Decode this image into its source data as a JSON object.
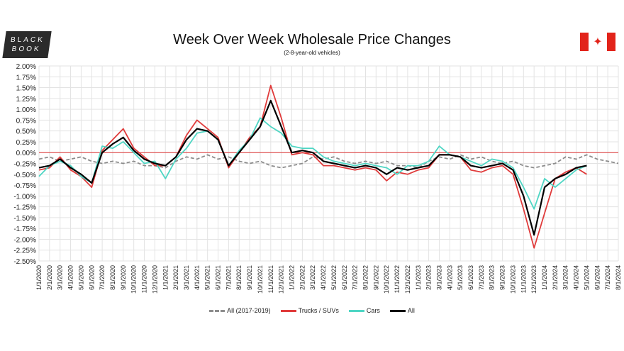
{
  "logo": {
    "line1": "BLACK",
    "line2": "BOOK"
  },
  "chart_data": {
    "type": "line",
    "title": "Week Over Week Wholesale Price Changes",
    "subtitle": "(2-8-year-old vehicles)",
    "ylim": [
      -2.5,
      2.0
    ],
    "yticks": [
      "2.00%",
      "1.75%",
      "1.50%",
      "1.25%",
      "1.00%",
      "0.75%",
      "0.50%",
      "0.25%",
      "0.00%",
      "-0.25%",
      "-0.50%",
      "-0.75%",
      "-1.00%",
      "-1.25%",
      "-1.50%",
      "-1.75%",
      "-2.00%",
      "-2.25%",
      "-2.50%"
    ],
    "ytick_values": [
      2.0,
      1.75,
      1.5,
      1.25,
      1.0,
      0.75,
      0.5,
      0.25,
      0,
      -0.25,
      -0.5,
      -0.75,
      -1.0,
      -1.25,
      -1.5,
      -1.75,
      -2.0,
      -2.25,
      -2.5
    ],
    "xticks": [
      "1/1/2020",
      "2/1/2020",
      "3/1/2020",
      "4/1/2020",
      "5/1/2020",
      "6/1/2020",
      "7/1/2020",
      "8/1/2020",
      "9/1/2020",
      "10/1/2020",
      "11/1/2020",
      "12/1/2020",
      "1/1/2021",
      "2/1/2021",
      "3/1/2021",
      "4/1/2021",
      "5/1/2021",
      "6/1/2021",
      "7/1/2021",
      "8/1/2021",
      "9/1/2021",
      "10/1/2021",
      "11/1/2021",
      "12/1/2021",
      "1/1/2022",
      "2/1/2022",
      "3/1/2022",
      "4/1/2022",
      "5/1/2022",
      "6/1/2022",
      "7/1/2022",
      "8/1/2022",
      "9/1/2022",
      "10/1/2022",
      "11/1/2022",
      "12/1/2022",
      "1/1/2023",
      "2/1/2023",
      "3/1/2023",
      "4/1/2023",
      "5/1/2023",
      "6/1/2023",
      "7/1/2023",
      "8/1/2023",
      "9/1/2023",
      "10/1/2023",
      "11/1/2023",
      "12/1/2023",
      "1/1/2024",
      "2/1/2024",
      "3/1/2024",
      "4/1/2024",
      "5/1/2024",
      "6/1/2024",
      "7/1/2024",
      "8/1/2024"
    ],
    "x_unit": "months since 1/1/2020",
    "grid": true,
    "legend_position": "bottom",
    "series": [
      {
        "name": "All (2017-2019)",
        "color": "#8c8c8c",
        "dashed": true,
        "values": [
          -0.15,
          -0.1,
          -0.2,
          -0.15,
          -0.1,
          -0.2,
          -0.25,
          -0.2,
          -0.25,
          -0.2,
          -0.3,
          -0.3,
          -0.35,
          -0.2,
          -0.1,
          -0.15,
          -0.05,
          -0.15,
          -0.1,
          -0.2,
          -0.25,
          -0.2,
          -0.3,
          -0.35,
          -0.3,
          -0.25,
          -0.1,
          -0.15,
          -0.1,
          -0.2,
          -0.25,
          -0.2,
          -0.25,
          -0.2,
          -0.3,
          -0.3,
          -0.35,
          -0.2,
          -0.1,
          -0.15,
          -0.05,
          -0.15,
          -0.1,
          -0.2,
          -0.25,
          -0.2,
          -0.3,
          -0.35,
          -0.3,
          -0.25,
          -0.1,
          -0.15,
          -0.05,
          -0.15,
          -0.2,
          -0.25
        ]
      },
      {
        "name": "Trucks / SUVs",
        "color": "#e03b3b",
        "dashed": false,
        "values": [
          -0.4,
          -0.35,
          -0.1,
          -0.4,
          -0.55,
          -0.8,
          0.05,
          0.3,
          0.55,
          0.1,
          -0.1,
          -0.3,
          -0.3,
          -0.1,
          0.4,
          0.75,
          0.55,
          0.35,
          -0.35,
          0.0,
          0.35,
          0.6,
          1.55,
          0.8,
          -0.05,
          0.0,
          -0.05,
          -0.3,
          -0.3,
          -0.35,
          -0.4,
          -0.35,
          -0.4,
          -0.65,
          -0.45,
          -0.5,
          -0.4,
          -0.35,
          -0.05,
          -0.05,
          -0.1,
          -0.4,
          -0.45,
          -0.35,
          -0.3,
          -0.5,
          -1.3,
          -2.2,
          -1.4,
          -0.6,
          -0.45,
          -0.35,
          -0.5
        ]
      },
      {
        "name": "Cars",
        "color": "#4fd6c4",
        "dashed": false,
        "values": [
          -0.55,
          -0.3,
          -0.2,
          -0.3,
          -0.55,
          -0.7,
          0.15,
          0.1,
          0.25,
          0.0,
          -0.25,
          -0.2,
          -0.6,
          -0.15,
          0.1,
          0.45,
          0.5,
          0.3,
          -0.3,
          0.05,
          0.3,
          0.8,
          0.6,
          0.45,
          0.15,
          0.1,
          0.1,
          -0.1,
          -0.2,
          -0.25,
          -0.3,
          -0.25,
          -0.3,
          -0.35,
          -0.5,
          -0.3,
          -0.3,
          -0.2,
          0.15,
          -0.05,
          -0.1,
          -0.2,
          -0.3,
          -0.15,
          -0.2,
          -0.35,
          -0.8,
          -1.3,
          -0.6,
          -0.8,
          -0.6,
          -0.4,
          -0.3
        ]
      },
      {
        "name": "All",
        "color": "#000000",
        "dashed": false,
        "values": [
          -0.35,
          -0.3,
          -0.15,
          -0.35,
          -0.5,
          -0.7,
          0.0,
          0.2,
          0.35,
          0.05,
          -0.15,
          -0.25,
          -0.3,
          -0.1,
          0.3,
          0.55,
          0.5,
          0.3,
          -0.3,
          0.0,
          0.3,
          0.6,
          1.2,
          0.6,
          0.0,
          0.05,
          0.0,
          -0.2,
          -0.25,
          -0.3,
          -0.35,
          -0.3,
          -0.35,
          -0.5,
          -0.35,
          -0.4,
          -0.35,
          -0.3,
          -0.05,
          -0.05,
          -0.1,
          -0.3,
          -0.35,
          -0.3,
          -0.25,
          -0.4,
          -1.0,
          -1.9,
          -0.8,
          -0.6,
          -0.5,
          -0.35,
          -0.3
        ]
      }
    ]
  }
}
